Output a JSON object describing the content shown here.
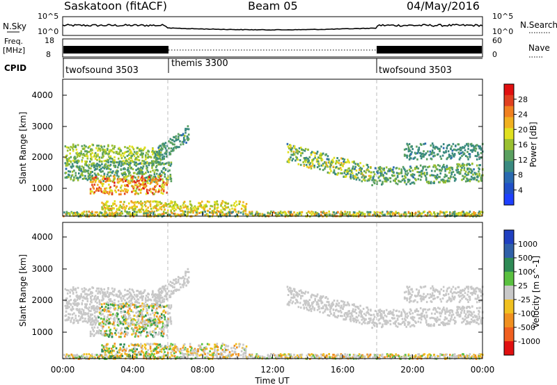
{
  "header": {
    "station": "Saskatoon (fitACF)",
    "beam": "Beam 05",
    "date": "04/May/2016"
  },
  "strip_labels": {
    "nsky": "N.Sky",
    "freq_line1": "Freq.",
    "freq_line2": "[MHz]",
    "cpid": "CPID",
    "nsearch": "N.Search",
    "nave": "Nave"
  },
  "strip_ticks": {
    "noise_left": [
      "10^5",
      "10^0"
    ],
    "noise_right": [
      "10^5",
      "10^0"
    ],
    "freq_left": [
      "18",
      "8"
    ],
    "nave_right": [
      "60",
      "0"
    ]
  },
  "cpid_segments": [
    {
      "label": "twofsound 3503",
      "start": 0,
      "end": 6
    },
    {
      "label": "themis 3300",
      "start": 6,
      "end": 18
    },
    {
      "label": "twofsound 3503",
      "start": 18,
      "end": 24
    }
  ],
  "chart_data": [
    {
      "type": "heatmap",
      "title": "Power",
      "ylabel": "Slant Range [km]",
      "ylim": [
        180,
        4600
      ],
      "yticks": [
        "1000",
        "2000",
        "3000",
        "4000"
      ],
      "xlim": [
        0,
        24
      ],
      "colorbar": {
        "label": "Power [dB]",
        "ticks": [
          "4",
          "8",
          "12",
          "16",
          "20",
          "24",
          "28"
        ],
        "colors": [
          "#1e40ff",
          "#2050c8",
          "#2a6ab0",
          "#3a8a80",
          "#5aa060",
          "#9ac030",
          "#e0e020",
          "#f0b020",
          "#f08020",
          "#e04020",
          "#e01010"
        ]
      }
    },
    {
      "type": "heatmap",
      "title": "Velocity",
      "ylabel": "Slant Range [km]",
      "xlabel": "Time UT",
      "ylim": [
        180,
        4600
      ],
      "yticks": [
        "1000",
        "2000",
        "3000",
        "4000"
      ],
      "xlim": [
        0,
        24
      ],
      "xticks": [
        "00:00",
        "04:00",
        "08:00",
        "12:00",
        "16:00",
        "20:00",
        "00:00"
      ],
      "colorbar": {
        "label": "Velocity [m s^-1]",
        "ticks": [
          "1000",
          "500",
          "100",
          "25",
          "-25",
          "-100",
          "-500",
          "-1000"
        ],
        "colors": [
          "#2040c0",
          "#3060a8",
          "#2e8a55",
          "#5ac040",
          "#c8c8c8",
          "#f0c020",
          "#f09020",
          "#f06020",
          "#e01010"
        ]
      }
    }
  ]
}
